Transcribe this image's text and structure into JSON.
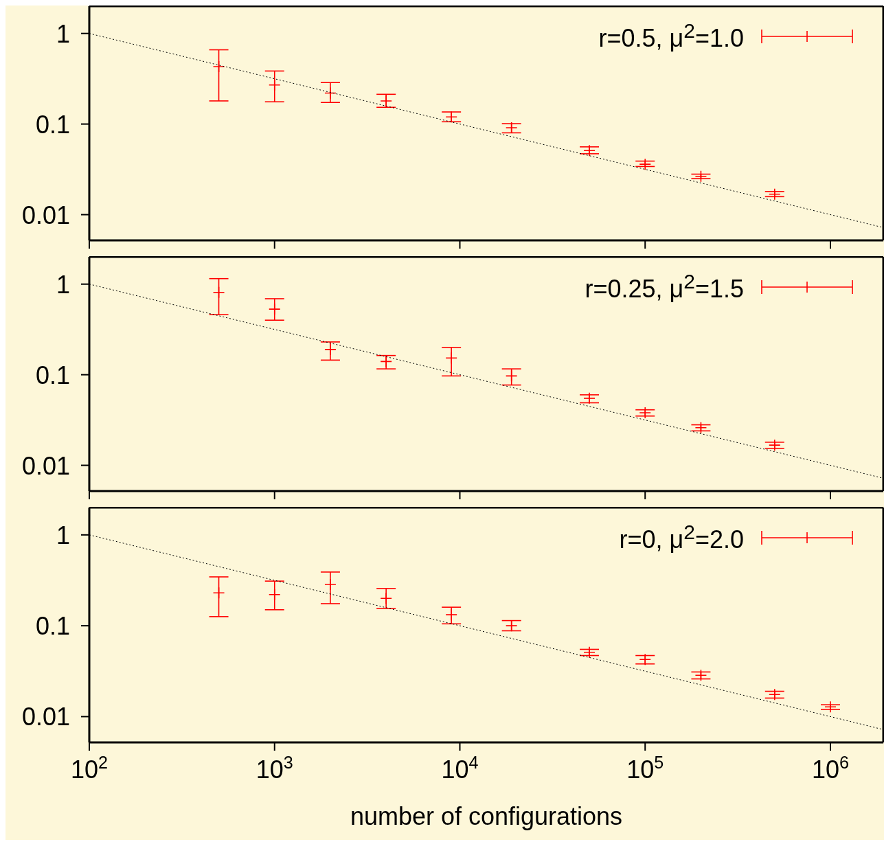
{
  "chart_data": [
    {
      "type": "scatter",
      "log": "xy",
      "legend": "top right",
      "tick_labels": "y",
      "xlim": [
        100,
        1930000
      ],
      "ylim": [
        0.0052,
        2.0
      ],
      "yticks": [
        0.01,
        0.1,
        1
      ],
      "xticks": [
        100,
        1000,
        10000,
        100000,
        1000000
      ],
      "series": [
        {
          "type": "scatter",
          "marker": "cross",
          "name": "r=0.5, μ$^{2}$=1.0",
          "color": "#ff0000",
          "x": [
            500,
            1000,
            2000,
            4000,
            9000,
            19000,
            50000,
            100000,
            200000,
            500000
          ],
          "values": [
            0.43,
            0.27,
            0.22,
            0.18,
            0.12,
            0.091,
            0.051,
            0.036,
            0.0265,
            0.0168
          ],
          "errors": [
            [
              0.18,
              0.66
            ],
            [
              0.176,
              0.385
            ],
            [
              0.173,
              0.287
            ],
            [
              0.153,
              0.213
            ],
            [
              0.106,
              0.136
            ],
            [
              0.08,
              0.101
            ],
            [
              0.047,
              0.056
            ],
            [
              0.034,
              0.039
            ],
            [
              0.025,
              0.028
            ],
            [
              0.0158,
              0.018
            ]
          ]
        },
        {
          "type": "line",
          "color": "#000000",
          "line_style": "dotted",
          "x": [
            100,
            1930000
          ],
          "values": [
            1,
            0.0072
          ]
        }
      ]
    },
    {
      "type": "scatter",
      "log": "xy",
      "legend": "top right",
      "tick_labels": "y",
      "xlim": [
        100,
        1930000
      ],
      "ylim": [
        0.0052,
        2.0
      ],
      "yticks": [
        0.01,
        0.1,
        1
      ],
      "xticks": [
        100,
        1000,
        10000,
        100000,
        1000000
      ],
      "series": [
        {
          "type": "scatter",
          "marker": "cross",
          "name": "r=0.25, μ$^{2}$=1.5",
          "color": "#ff0000",
          "x": [
            500,
            1000,
            2000,
            4000,
            9000,
            19000,
            50000,
            100000,
            200000,
            500000
          ],
          "values": [
            0.81,
            0.53,
            0.19,
            0.14,
            0.153,
            0.097,
            0.055,
            0.038,
            0.026,
            0.0167
          ],
          "errors": [
            [
              0.46,
              1.15
            ],
            [
              0.4,
              0.69
            ],
            [
              0.145,
              0.23
            ],
            [
              0.116,
              0.163
            ],
            [
              0.097,
              0.2
            ],
            [
              0.077,
              0.116
            ],
            [
              0.049,
              0.06
            ],
            [
              0.035,
              0.041
            ],
            [
              0.024,
              0.028
            ],
            [
              0.0154,
              0.018
            ]
          ]
        },
        {
          "type": "line",
          "color": "#000000",
          "line_style": "dotted",
          "x": [
            100,
            1930000
          ],
          "values": [
            1,
            0.0072
          ]
        }
      ]
    },
    {
      "type": "scatter",
      "log": "xy",
      "legend": "top right",
      "xlabel": "number of configurations",
      "xlim": [
        100,
        1930000
      ],
      "ylim": [
        0.0052,
        2.0
      ],
      "yticks": [
        0.01,
        0.1,
        1
      ],
      "xticks": [
        {
          "value": 100,
          "label": "10$^{2}$"
        },
        {
          "value": 1000,
          "label": "10$^{3}$"
        },
        {
          "value": 10000,
          "label": "10$^{4}$"
        },
        {
          "value": 100000,
          "label": "10$^{5}$"
        },
        {
          "value": 1000000,
          "label": "10$^{6}$"
        }
      ],
      "series": [
        {
          "type": "scatter",
          "marker": "cross",
          "name": "r=0, μ$^{2}$=2.0",
          "color": "#ff0000",
          "x": [
            500,
            1000,
            2000,
            4000,
            9000,
            19000,
            50000,
            100000,
            200000,
            500000,
            1000000
          ],
          "values": [
            0.23,
            0.22,
            0.285,
            0.2,
            0.132,
            0.1,
            0.051,
            0.0425,
            0.0285,
            0.0175,
            0.0128
          ],
          "errors": [
            [
              0.126,
              0.345
            ],
            [
              0.15,
              0.31
            ],
            [
              0.175,
              0.39
            ],
            [
              0.155,
              0.257
            ],
            [
              0.105,
              0.16
            ],
            [
              0.088,
              0.114
            ],
            [
              0.047,
              0.055
            ],
            [
              0.038,
              0.047
            ],
            [
              0.026,
              0.031
            ],
            [
              0.016,
              0.019
            ],
            [
              0.012,
              0.0135
            ]
          ]
        },
        {
          "type": "line",
          "color": "#000000",
          "line_style": "dotted",
          "x": [
            100,
            1930000
          ],
          "values": [
            1,
            0.0072
          ]
        }
      ]
    }
  ]
}
